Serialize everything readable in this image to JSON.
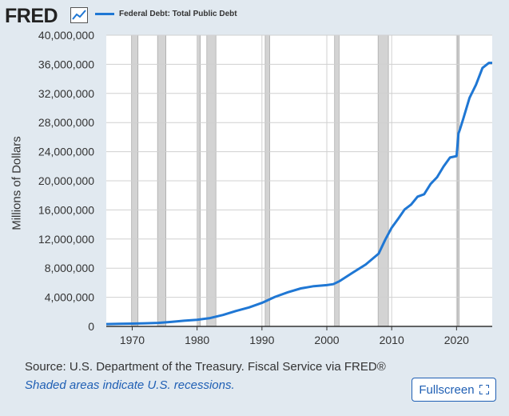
{
  "brand": {
    "logo_text": "FRED",
    "logo_icon": "chart-line-icon"
  },
  "legend": {
    "series_label": "Federal Debt: Total Public Debt",
    "color": "#1f77d4"
  },
  "footer": {
    "source": "Source: U.S. Department of the Treasury. Fiscal Service via FRED®",
    "recession_note": "Shaded areas indicate U.S. recessions.",
    "fullscreen_label": "Fullscreen",
    "fullscreen_icon": "expand-icon"
  },
  "colors": {
    "background": "#e1e9f0",
    "plot": "#ffffff",
    "recession": "#d3d3d3",
    "line": "#1f77d4",
    "grid": "#d0d0d0"
  },
  "chart_data": {
    "type": "line",
    "title": "Federal Debt: Total Public Debt",
    "xlabel": "",
    "ylabel": "Millions of Dollars",
    "xlim": [
      1966,
      2025.5
    ],
    "ylim": [
      0,
      40000000
    ],
    "y_ticks": [
      0,
      4000000,
      8000000,
      12000000,
      16000000,
      20000000,
      24000000,
      28000000,
      32000000,
      36000000,
      40000000
    ],
    "y_tick_labels": [
      "0",
      "4,000,000",
      "8,000,000",
      "12,000,000",
      "16,000,000",
      "20,000,000",
      "24,000,000",
      "28,000,000",
      "32,000,000",
      "36,000,000",
      "40,000,000"
    ],
    "x_ticks": [
      1970,
      1980,
      1990,
      2000,
      2010,
      2020
    ],
    "x_tick_labels": [
      "1970",
      "1980",
      "1990",
      "2000",
      "2010",
      "2020"
    ],
    "recessions": [
      [
        1969.9,
        1970.9
      ],
      [
        1973.9,
        1975.2
      ],
      [
        1980.0,
        1980.5
      ],
      [
        1981.5,
        1982.9
      ],
      [
        1990.5,
        1991.2
      ],
      [
        2001.2,
        2001.9
      ],
      [
        2007.9,
        2009.5
      ],
      [
        2020.1,
        2020.4
      ]
    ],
    "series": [
      {
        "name": "Federal Debt: Total Public Debt",
        "x": [
          1966,
          1968,
          1970,
          1972,
          1974,
          1976,
          1978,
          1980,
          1982,
          1984,
          1986,
          1988,
          1990,
          1992,
          1994,
          1996,
          1998,
          2000,
          2001,
          2002,
          2004,
          2006,
          2008,
          2009,
          2010,
          2011,
          2012,
          2013,
          2014,
          2015,
          2016,
          2017,
          2018,
          2019,
          2020,
          2020.3,
          2020.5,
          2021,
          2022,
          2023,
          2024,
          2025,
          2025.5
        ],
        "values": [
          320000,
          350000,
          380000,
          430000,
          480000,
          620000,
          780000,
          910000,
          1140000,
          1570000,
          2120000,
          2600000,
          3230000,
          4060000,
          4690000,
          5220000,
          5530000,
          5670000,
          5800000,
          6230000,
          7380000,
          8510000,
          10000000,
          11900000,
          13560000,
          14780000,
          16070000,
          16740000,
          17820000,
          18150000,
          19570000,
          20490000,
          21970000,
          23200000,
          23400000,
          26500000,
          27000000,
          28430000,
          31400000,
          33200000,
          35500000,
          36200000,
          36200000
        ]
      }
    ]
  }
}
